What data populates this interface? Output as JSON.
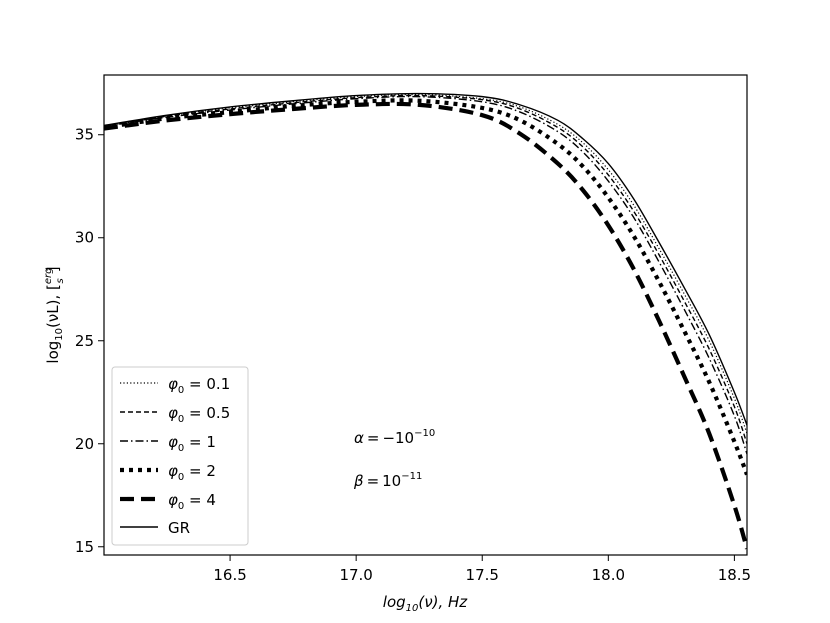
{
  "chart_data": {
    "type": "line",
    "title": "",
    "xlabel_parts": {
      "main": "log",
      "sub": "10",
      "arg": "(ν),  Hz"
    },
    "ylabel_parts": {
      "main": "log",
      "sub": "10",
      "arg": "(νL),  [",
      "frac_num": "erg",
      "frac_den": "s",
      "close": "]"
    },
    "xlim": [
      16.0,
      18.55
    ],
    "ylim": [
      14.6,
      37.9
    ],
    "xticks": [
      16.5,
      17.0,
      17.5,
      18.0,
      18.5
    ],
    "xtick_labels": [
      "16.5",
      "17.0",
      "17.5",
      "18.0",
      "18.5"
    ],
    "yticks": [
      15,
      20,
      25,
      30,
      35
    ],
    "ytick_labels": [
      "15",
      "20",
      "25",
      "30",
      "35"
    ],
    "grid": false,
    "legend_position": "lower-left",
    "annotations": [
      {
        "lhs": "α",
        "op": " = −10",
        "exp": "−10"
      },
      {
        "lhs": "β",
        "op": " = 10",
        "exp": "−11"
      }
    ],
    "x": [
      16.0,
      16.25,
      16.5,
      16.75,
      17.0,
      17.25,
      17.5,
      17.65,
      17.8,
      17.9,
      18.0,
      18.1,
      18.2,
      18.3,
      18.4,
      18.5,
      18.55
    ],
    "series": [
      {
        "key": "s01",
        "label_sym": "φ",
        "label_sub": "0",
        "label_val": " = 0.1",
        "style": "dotted",
        "values": [
          35.4,
          35.9,
          36.3,
          36.6,
          36.85,
          36.95,
          36.75,
          36.35,
          35.5,
          34.6,
          33.3,
          31.6,
          29.5,
          27.3,
          25.0,
          22.2,
          20.5
        ]
      },
      {
        "key": "s05",
        "label_sym": "φ",
        "label_sub": "0",
        "label_val": " = 0.5",
        "style": "dashed",
        "values": [
          35.4,
          35.9,
          36.25,
          36.55,
          36.8,
          36.9,
          36.7,
          36.25,
          35.35,
          34.4,
          33.05,
          31.3,
          29.2,
          26.95,
          24.6,
          21.8,
          20.0
        ]
      },
      {
        "key": "s1",
        "label_sym": "φ",
        "label_sub": "0",
        "label_val": " = 1",
        "style": "dashdot",
        "values": [
          35.4,
          35.85,
          36.2,
          36.5,
          36.75,
          36.85,
          36.6,
          36.1,
          35.15,
          34.15,
          32.75,
          31.0,
          28.85,
          26.55,
          24.15,
          21.35,
          19.5
        ]
      },
      {
        "key": "s2",
        "label_sym": "φ",
        "label_sub": "0",
        "label_val": " = 2",
        "style": "dotted-thick",
        "values": [
          35.35,
          35.8,
          36.1,
          36.4,
          36.6,
          36.65,
          36.3,
          35.7,
          34.55,
          33.45,
          31.95,
          30.1,
          27.9,
          25.5,
          23.0,
          20.1,
          18.5
        ]
      },
      {
        "key": "s4",
        "label_sym": "φ",
        "label_sub": "0",
        "label_val": " = 4",
        "style": "dashed-thick",
        "values": [
          35.3,
          35.7,
          36.0,
          36.25,
          36.45,
          36.45,
          35.95,
          35.05,
          33.6,
          32.3,
          30.6,
          28.5,
          26.0,
          23.3,
          20.5,
          17.0,
          14.9
        ]
      },
      {
        "key": "gr",
        "label_text": "GR",
        "style": "solid",
        "values": [
          35.45,
          35.95,
          36.35,
          36.65,
          36.9,
          37.0,
          36.85,
          36.45,
          35.7,
          34.8,
          33.6,
          31.9,
          29.8,
          27.6,
          25.3,
          22.5,
          20.9
        ]
      }
    ]
  }
}
